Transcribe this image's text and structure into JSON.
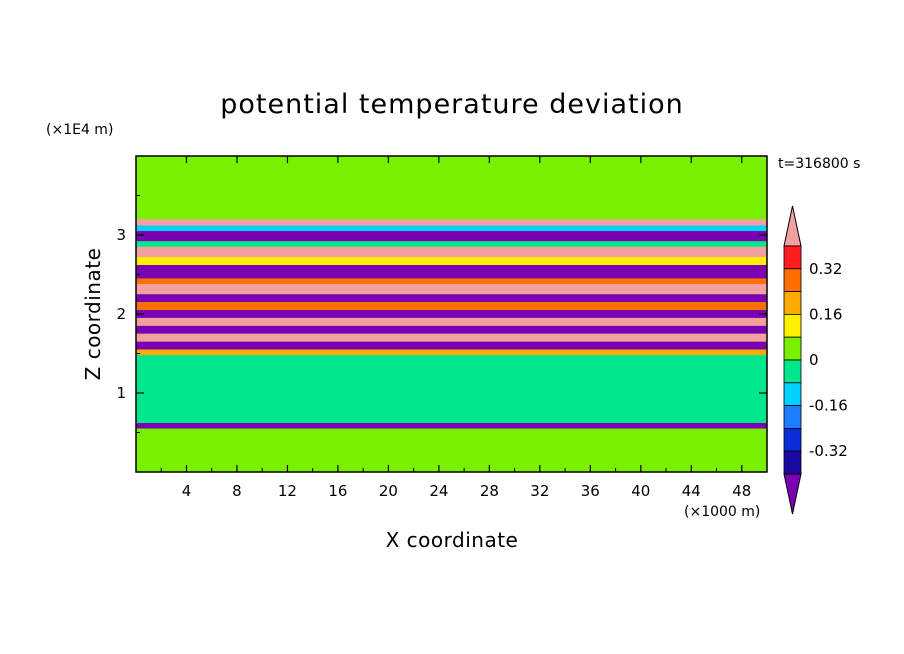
{
  "chart_data": {
    "type": "heatmap",
    "title": "potential temperature deviation",
    "xlabel": "X coordinate",
    "ylabel": "Z coordinate",
    "x_unit": "(×1000 m)",
    "y_unit": "(×1E4 m)",
    "time_label": "t=316800 s",
    "xlim": [
      0,
      50
    ],
    "ylim": [
      0,
      4
    ],
    "xticks": [
      4,
      8,
      12,
      16,
      20,
      24,
      28,
      32,
      36,
      40,
      44,
      48
    ],
    "yticks": [
      1,
      2,
      3
    ],
    "colorbar": {
      "labels": [
        "0.32",
        "0.16",
        "0",
        "-0.16",
        "-0.32"
      ],
      "label_values": [
        0.32,
        0.16,
        0,
        -0.16,
        -0.32
      ],
      "levels": [
        -0.4,
        -0.32,
        -0.24,
        -0.16,
        -0.08,
        0,
        0.08,
        0.16,
        0.24,
        0.32,
        0.4
      ],
      "colors": [
        "#7b00b4",
        "#1a0aa0",
        "#0a2dd8",
        "#1e7dff",
        "#00d2ff",
        "#00e68c",
        "#78f000",
        "#fff000",
        "#ffaa00",
        "#ff6e00",
        "#ff1e1e",
        "#f4a0a0"
      ],
      "extend": "both"
    },
    "bands": [
      {
        "z": [
          3.9,
          4.0
        ],
        "value": 0.05,
        "desc": "top"
      },
      {
        "z": [
          3.2,
          3.9
        ],
        "value": 0.05
      },
      {
        "z": [
          3.12,
          3.2
        ],
        "value": 0.42
      },
      {
        "z": [
          3.05,
          3.12
        ],
        "value": -0.12
      },
      {
        "z": [
          2.92,
          3.05
        ],
        "value": -0.42
      },
      {
        "z": [
          2.85,
          2.92
        ],
        "value": -0.05
      },
      {
        "z": [
          2.72,
          2.85
        ],
        "value": 0.42
      },
      {
        "z": [
          2.62,
          2.72
        ],
        "value": 0.15
      },
      {
        "z": [
          2.45,
          2.62
        ],
        "value": -0.42
      },
      {
        "z": [
          2.38,
          2.45
        ],
        "value": 0.3
      },
      {
        "z": [
          2.25,
          2.38
        ],
        "value": 0.42
      },
      {
        "z": [
          2.15,
          2.25
        ],
        "value": -0.42
      },
      {
        "z": [
          2.05,
          2.15
        ],
        "value": 0.25
      },
      {
        "z": [
          1.95,
          2.05
        ],
        "value": -0.42
      },
      {
        "z": [
          1.85,
          1.95
        ],
        "value": 0.42
      },
      {
        "z": [
          1.75,
          1.85
        ],
        "value": -0.42
      },
      {
        "z": [
          1.65,
          1.75
        ],
        "value": 0.42
      },
      {
        "z": [
          1.55,
          1.65
        ],
        "value": -0.42
      },
      {
        "z": [
          1.48,
          1.55
        ],
        "value": 0.2
      },
      {
        "z": [
          0.62,
          1.48
        ],
        "value": -0.02
      },
      {
        "z": [
          0.55,
          0.62
        ],
        "value": -0.42
      },
      {
        "z": [
          0.0,
          0.55
        ],
        "value": 0.0
      }
    ]
  }
}
